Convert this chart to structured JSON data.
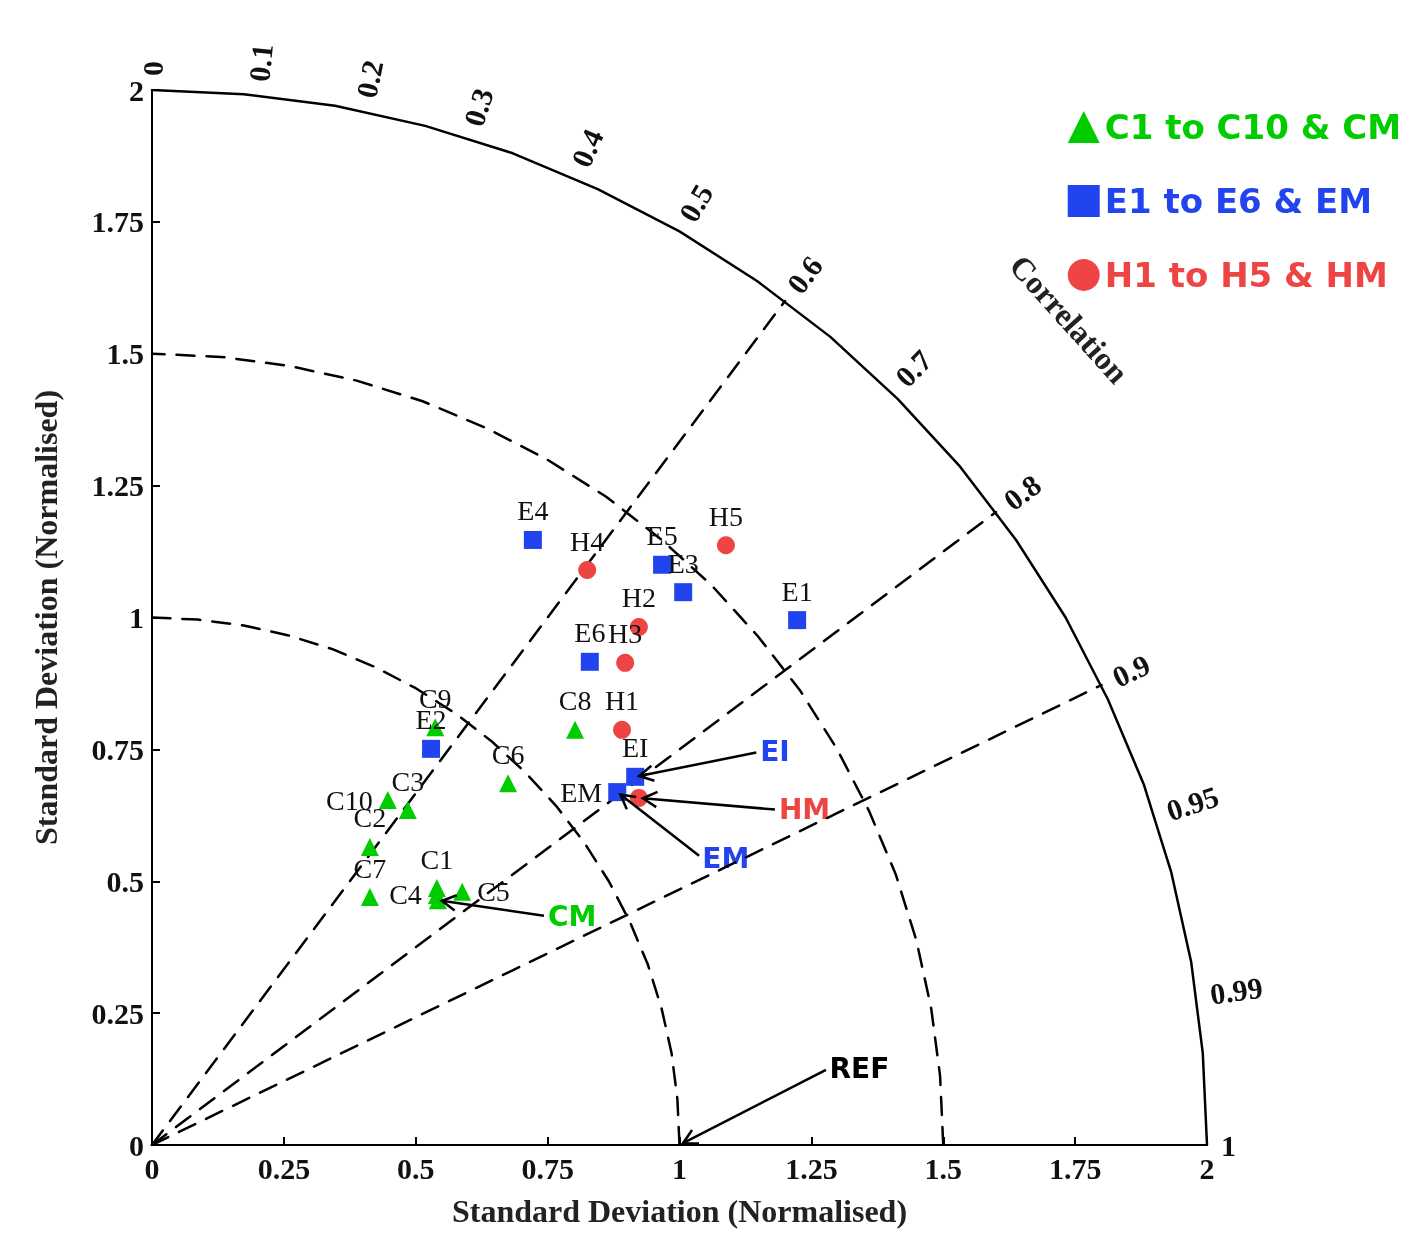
{
  "chart_data": {
    "type": "scatter",
    "xlabel": "Standard Deviation (Normalised)",
    "ylabel": "Standard Deviation (Normalised)",
    "xlim": [
      0,
      2
    ],
    "xticks": [
      0,
      0.25,
      0.5,
      0.75,
      1,
      1.25,
      1.5,
      1.75,
      2
    ],
    "ylim": [
      0,
      2
    ],
    "yticks": [
      0,
      0.25,
      0.5,
      0.75,
      1,
      1.25,
      1.5,
      1.75,
      2
    ],
    "grid": false,
    "legend": "top right",
    "series": [
      {
        "name": "C1 to C10 & CM",
        "color": "#00cc00",
        "marker": "triangle",
        "x": [
          0.54,
          0.413,
          0.485,
          0.54,
          0.588,
          0.675,
          0.413,
          0.802,
          0.537,
          0.447,
          0.542
        ],
        "values": [
          0.487,
          0.565,
          0.635,
          0.474,
          0.48,
          0.686,
          0.47,
          0.787,
          0.792,
          0.654,
          0.464
        ],
        "value_labels": [
          "C1",
          "C2",
          "C3",
          "C4",
          "C5",
          "C6",
          "C7",
          "C8",
          "C9",
          "C10",
          null
        ]
      },
      {
        "name": "E1 to E6 & EM",
        "color": "#2244ee",
        "marker": "square",
        "x": [
          1.223,
          0.529,
          1.007,
          0.722,
          0.967,
          0.83,
          0.916,
          0.882
        ],
        "values": [
          0.995,
          0.751,
          1.048,
          1.147,
          1.1,
          0.916,
          0.698,
          0.669
        ],
        "value_labels": [
          "E1",
          "E2",
          "E3",
          "E4",
          "E5",
          "E6",
          "EI",
          "EM"
        ]
      },
      {
        "name": "H1 to H5 & HM",
        "color": "#ee4444",
        "marker": "circle",
        "x": [
          0.891,
          0.923,
          0.897,
          0.825,
          1.088,
          0.923
        ],
        "values": [
          0.787,
          0.982,
          0.914,
          1.09,
          1.137,
          0.658
        ],
        "value_labels": [
          "H1",
          "H2",
          "H3",
          "H4",
          "H5",
          null
        ]
      },
      {
        "type": "line",
        "color": "#000000",
        "marker": "none",
        "line_style": "solid",
        "x": [
          2,
          1.992,
          1.97,
          1.932,
          1.88,
          1.812,
          1.732,
          1.638,
          1.532,
          1.414,
          1.286,
          1.147,
          1,
          0.845,
          0.684,
          0.518,
          0.347,
          0.174,
          0
        ],
        "values": [
          0,
          0.174,
          0.347,
          0.518,
          0.684,
          0.845,
          1,
          1.147,
          1.286,
          1.414,
          1.532,
          1.638,
          1.732,
          1.812,
          1.88,
          1.932,
          1.97,
          1.992,
          2
        ]
      },
      {
        "type": "line",
        "color": "#000000",
        "marker": "none",
        "line_style": "dashed",
        "x": [
          1.5,
          1.494,
          1.477,
          1.449,
          1.41,
          1.359,
          1.299,
          1.229,
          1.149,
          1.061,
          0.964,
          0.861,
          0.75,
          0.634,
          0.513,
          0.388,
          0.26,
          0.131,
          0
        ],
        "values": [
          0,
          0.131,
          0.26,
          0.388,
          0.513,
          0.634,
          0.75,
          0.861,
          0.964,
          1.061,
          1.149,
          1.229,
          1.299,
          1.359,
          1.41,
          1.449,
          1.477,
          1.494,
          1.5
        ]
      },
      {
        "type": "line",
        "color": "#000000",
        "marker": "none",
        "line_style": "dashed",
        "x": [
          1,
          0.996,
          0.985,
          0.966,
          0.94,
          0.906,
          0.866,
          0.819,
          0.766,
          0.707,
          0.643,
          0.574,
          0.5,
          0.423,
          0.342,
          0.259,
          0.174,
          0.087,
          0
        ],
        "values": [
          0,
          0.087,
          0.174,
          0.259,
          0.342,
          0.423,
          0.5,
          0.574,
          0.643,
          0.707,
          0.766,
          0.819,
          0.866,
          0.906,
          0.94,
          0.966,
          0.985,
          0.996,
          1
        ]
      },
      {
        "type": "line",
        "color": "#000000",
        "marker": "none",
        "line_style": "dashed",
        "x": [
          0,
          1.2
        ],
        "values": [
          0,
          1.6
        ]
      },
      {
        "type": "line",
        "color": "#000000",
        "marker": "none",
        "line_style": "dashed",
        "x": [
          0,
          1.6
        ],
        "values": [
          0,
          1.2
        ]
      },
      {
        "type": "line",
        "color": "#000000",
        "marker": "none",
        "line_style": "dashed",
        "x": [
          0,
          1.8
        ],
        "values": [
          0,
          0.872
        ]
      }
    ],
    "annotations": [
      "Correlation",
      {
        "text": "0",
        "x": 0,
        "y": 2
      },
      {
        "text": "0.1",
        "x": 0.2,
        "y": 1.99
      },
      {
        "text": "0.2",
        "x": 0.4,
        "y": 1.96
      },
      {
        "text": "0.3",
        "x": 0.6,
        "y": 1.908
      },
      {
        "text": "0.4",
        "x": 0.8,
        "y": 1.833
      },
      {
        "text": "0.5",
        "x": 1,
        "y": 1.732
      },
      {
        "text": "0.6",
        "x": 1.2,
        "y": 1.6
      },
      {
        "text": "0.7",
        "x": 1.4,
        "y": 1.428
      },
      {
        "text": "0.8",
        "x": 1.6,
        "y": 1.2
      },
      {
        "text": "0.9",
        "x": 1.8,
        "y": 0.872
      },
      {
        "text": "0.95",
        "x": 1.9,
        "y": 0.624
      },
      {
        "text": "0.99",
        "x": 1.98,
        "y": 0.282
      },
      {
        "text": "1",
        "x": 2,
        "y": 0
      },
      {
        "text": "EI",
        "x": 0.916,
        "y": 0.698
      },
      {
        "text": "HM",
        "x": 0.923,
        "y": 0.658
      },
      {
        "text": "EM",
        "x": 0.882,
        "y": 0.669
      },
      {
        "text": "CM",
        "x": 0.542,
        "y": 0.464
      },
      {
        "text": "REF",
        "x": 1,
        "y": 0
      }
    ]
  }
}
